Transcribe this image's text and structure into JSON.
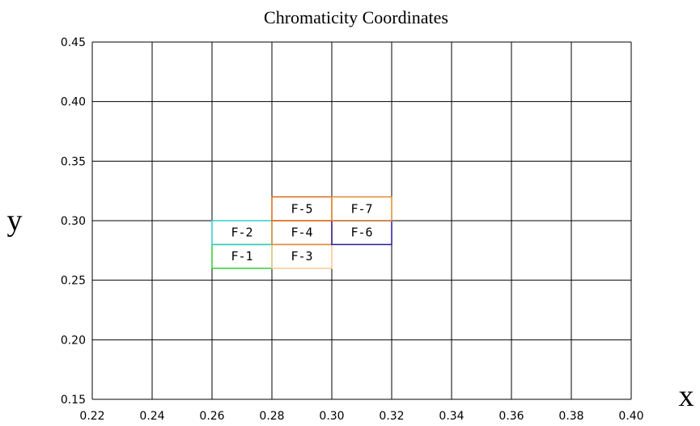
{
  "chart_data": {
    "type": "scatter",
    "title": "Chromaticity Coordinates",
    "xlabel": "x",
    "ylabel": "y",
    "xlim": [
      0.22,
      0.4
    ],
    "ylim": [
      0.15,
      0.45
    ],
    "x_ticks": [
      "0.22",
      "0.24",
      "0.26",
      "0.28",
      "0.30",
      "0.32",
      "0.34",
      "0.36",
      "0.38",
      "0.40"
    ],
    "y_ticks": [
      "0.15",
      "0.20",
      "0.25",
      "0.30",
      "0.35",
      "0.40",
      "0.45"
    ],
    "grid": true,
    "regions": [
      {
        "label": "F-1",
        "x": [
          0.26,
          0.28
        ],
        "y": [
          0.26,
          0.28
        ],
        "color": "#33cc33"
      },
      {
        "label": "F-2",
        "x": [
          0.26,
          0.28
        ],
        "y": [
          0.28,
          0.3
        ],
        "color": "#33cccc"
      },
      {
        "label": "F-3",
        "x": [
          0.28,
          0.3
        ],
        "y": [
          0.26,
          0.28
        ],
        "color": "#f5c890"
      },
      {
        "label": "F-4",
        "x": [
          0.28,
          0.3
        ],
        "y": [
          0.28,
          0.3
        ],
        "color": "#e08a30"
      },
      {
        "label": "F-5",
        "x": [
          0.28,
          0.3
        ],
        "y": [
          0.3,
          0.32
        ],
        "color": "#dd6a1a"
      },
      {
        "label": "F-6",
        "x": [
          0.3,
          0.32
        ],
        "y": [
          0.28,
          0.3
        ],
        "color": "#2a1a99"
      },
      {
        "label": "F-7",
        "x": [
          0.3,
          0.32
        ],
        "y": [
          0.3,
          0.32
        ],
        "color": "#e08a30"
      }
    ]
  }
}
